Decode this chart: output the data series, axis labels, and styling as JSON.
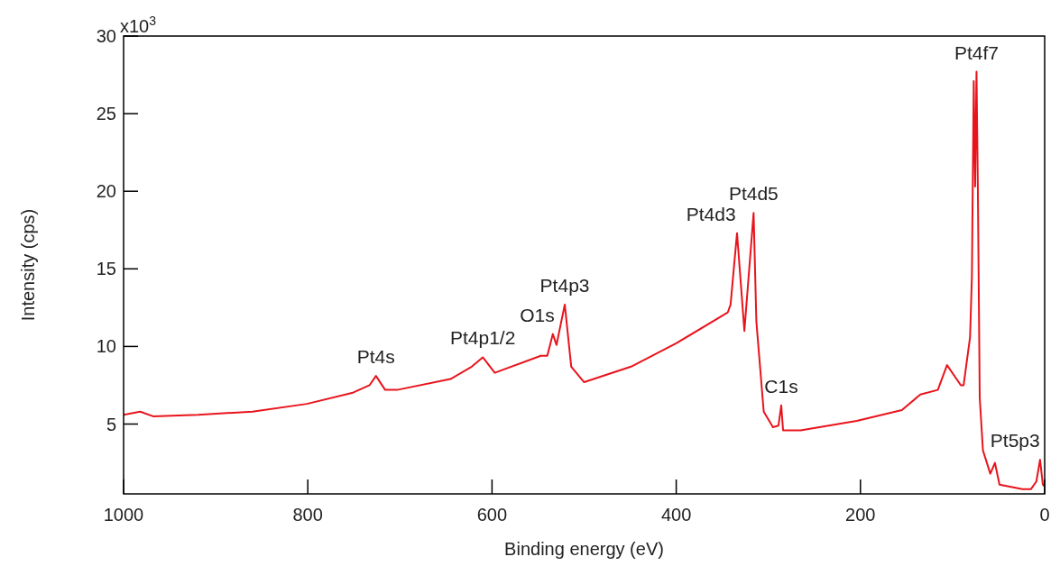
{
  "chart_data": {
    "type": "line",
    "xlabel": "Binding energy (eV)",
    "ylabel": "Intensity (cps)",
    "xlim": [
      1000,
      0
    ],
    "xticks": [
      1000,
      800,
      600,
      400,
      200,
      0
    ],
    "ylim": [
      0.5,
      30
    ],
    "yticks": [
      5,
      10,
      15,
      20,
      25,
      30
    ],
    "grid": false,
    "marker": "none",
    "line_style": "solid",
    "series": [
      {
        "color": "#e8141c",
        "x": [
          1000,
          982,
          968,
          919,
          860,
          801,
          752,
          733,
          726,
          716,
          703,
          645,
          622,
          610,
          597,
          547,
          540,
          534,
          530,
          521,
          514,
          500,
          449,
          400,
          344,
          341,
          334,
          326,
          316,
          313,
          305,
          295,
          289,
          286,
          284,
          265,
          204,
          155,
          135,
          116,
          106,
          91,
          88,
          81,
          79,
          77,
          75.5,
          74,
          72.5,
          70.5,
          67,
          59,
          54,
          49,
          24,
          15,
          9,
          5,
          2,
          0.5
        ],
        "values": [
          5.6,
          5.8,
          5.5,
          5.6,
          5.8,
          6.3,
          7.0,
          7.5,
          8.1,
          7.2,
          7.2,
          7.9,
          8.7,
          9.3,
          8.3,
          9.4,
          9.4,
          10.8,
          10.1,
          12.7,
          8.7,
          7.7,
          8.7,
          10.2,
          12.2,
          12.7,
          17.3,
          11.0,
          18.6,
          11.6,
          5.8,
          4.8,
          4.9,
          6.2,
          4.6,
          4.6,
          5.2,
          5.9,
          6.9,
          7.2,
          8.8,
          7.5,
          7.5,
          10.6,
          14.5,
          27.1,
          20.3,
          27.7,
          20.0,
          6.7,
          3.3,
          1.8,
          2.5,
          1.1,
          0.8,
          0.8,
          1.3,
          2.7,
          1.1,
          1.0
        ]
      }
    ],
    "annotations": [
      "x10$^{3}$",
      {
        "text": "Pt4s",
        "x": 726,
        "y": 8.1
      },
      {
        "text": "Pt4p1/2",
        "x": 610,
        "y": 9.3
      },
      {
        "text": "O1s",
        "x": 534,
        "y": 10.8
      },
      {
        "text": "Pt4p3",
        "x": 521,
        "y": 12.7
      },
      {
        "text": "Pt4d3",
        "x": 334,
        "y": 17.3
      },
      {
        "text": "Pt4d5",
        "x": 316,
        "y": 18.6
      },
      {
        "text": "C1s",
        "x": 286,
        "y": 6.2
      },
      {
        "text": "Pt4f7",
        "x": 74,
        "y": 27.7
      },
      {
        "text": "Pt5p3",
        "x": 5,
        "y": 2.7
      }
    ]
  }
}
